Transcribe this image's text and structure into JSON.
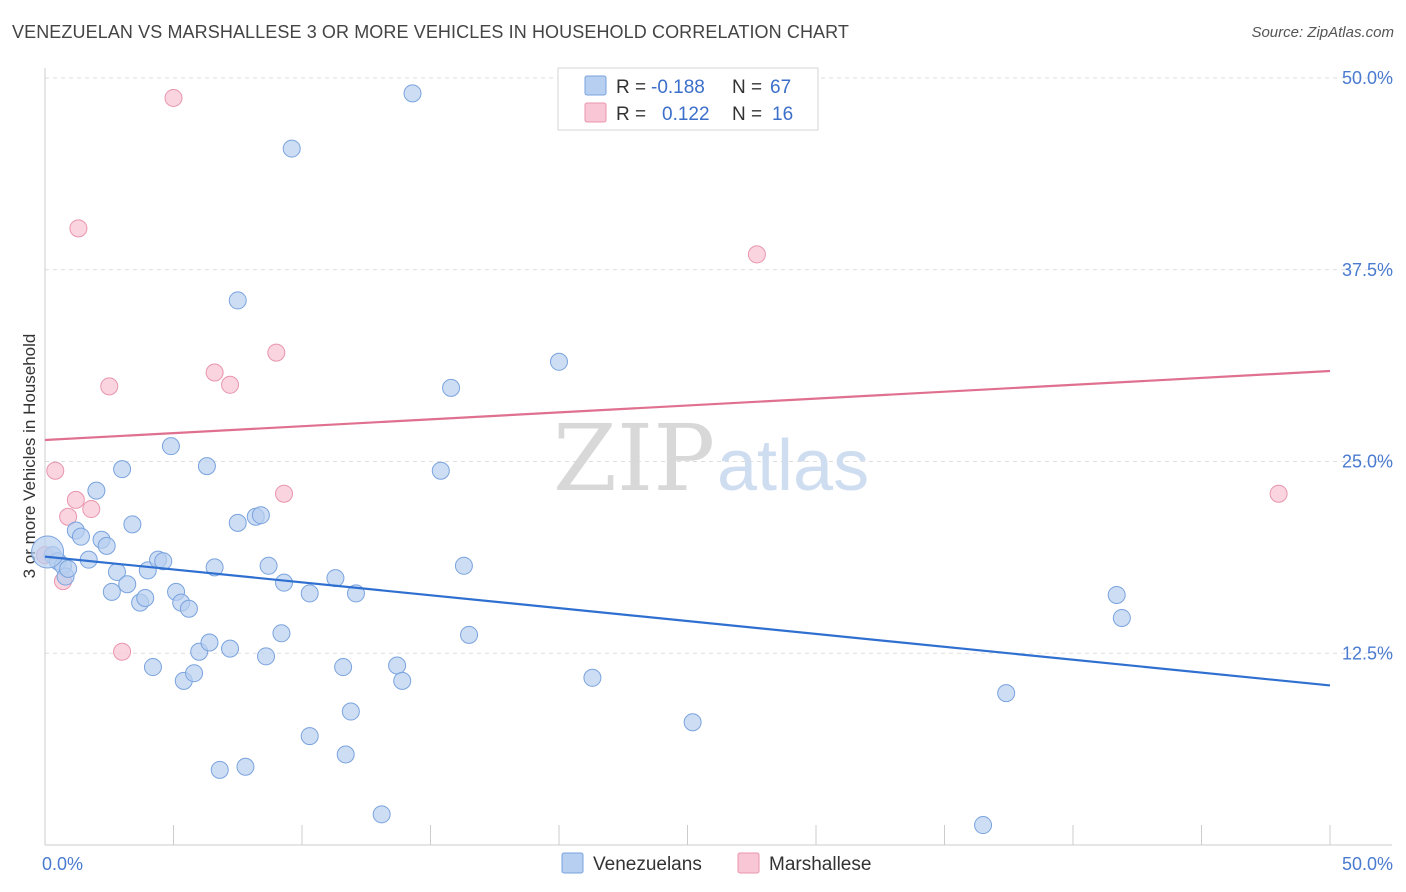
{
  "title": "VENEZUELAN VS MARSHALLESE 3 OR MORE VEHICLES IN HOUSEHOLD CORRELATION CHART",
  "source": "Source: ZipAtlas.com",
  "watermark": {
    "zip": "ZIP",
    "atlas": "atlas"
  },
  "colors": {
    "blue_fill": "#b7cff0",
    "blue_stroke": "#7aa3de",
    "blue_line": "#2f6fd0",
    "pink_fill": "#f8c6d4",
    "pink_stroke": "#e895ad",
    "pink_line": "#e0708f",
    "axis_label": "#4a7bd0",
    "grid": "#dddddd"
  },
  "legend": {
    "rows": [
      {
        "r_label": "R =",
        "r_value": "-0.188",
        "n_label": "N =",
        "n_value": "67"
      },
      {
        "r_label": "R =",
        "r_value": "0.122",
        "n_label": "N =",
        "n_value": "16"
      }
    ]
  },
  "chart_data": {
    "type": "scatter",
    "title": "VENEZUELAN VS MARSHALLESE 3 OR MORE VEHICLES IN HOUSEHOLD CORRELATION CHART",
    "xlabel": "",
    "ylabel": "3 or more Vehicles in Household",
    "xlim": [
      0,
      50
    ],
    "ylim": [
      0,
      50
    ],
    "x_tick_labels": [
      "0.0%",
      "50.0%"
    ],
    "y_ticks": [
      12.5,
      25.0,
      37.5,
      50.0
    ],
    "y_tick_labels": [
      "12.5%",
      "25.0%",
      "37.5%",
      "50.0%"
    ],
    "grid": true,
    "legend_position": "top-center",
    "series": [
      {
        "name": "Venezuelans",
        "r": -0.188,
        "n": 67,
        "trend": {
          "x": [
            0,
            50
          ],
          "y": [
            18.8,
            10.4
          ]
        },
        "points": [
          [
            0.3,
            18.9
          ],
          [
            0.5,
            18.5
          ],
          [
            0.7,
            18.2
          ],
          [
            0.8,
            17.5
          ],
          [
            0.9,
            18.0
          ],
          [
            1.2,
            20.5
          ],
          [
            1.4,
            20.1
          ],
          [
            1.7,
            18.6
          ],
          [
            2.0,
            23.1
          ],
          [
            2.2,
            19.9
          ],
          [
            2.4,
            19.5
          ],
          [
            2.6,
            16.5
          ],
          [
            2.8,
            17.8
          ],
          [
            3.0,
            24.5
          ],
          [
            3.2,
            17.0
          ],
          [
            3.4,
            20.9
          ],
          [
            3.7,
            15.8
          ],
          [
            3.9,
            16.1
          ],
          [
            4.0,
            17.9
          ],
          [
            4.2,
            11.6
          ],
          [
            4.4,
            18.6
          ],
          [
            4.6,
            18.5
          ],
          [
            4.9,
            26.0
          ],
          [
            5.1,
            16.5
          ],
          [
            5.3,
            15.8
          ],
          [
            5.4,
            10.7
          ],
          [
            5.6,
            15.4
          ],
          [
            5.8,
            11.2
          ],
          [
            6.0,
            12.6
          ],
          [
            6.3,
            24.7
          ],
          [
            6.4,
            13.2
          ],
          [
            6.6,
            18.1
          ],
          [
            6.8,
            4.9
          ],
          [
            7.2,
            12.8
          ],
          [
            7.5,
            35.5
          ],
          [
            7.5,
            21.0
          ],
          [
            7.8,
            5.1
          ],
          [
            8.2,
            21.4
          ],
          [
            8.4,
            21.5
          ],
          [
            8.6,
            12.3
          ],
          [
            8.7,
            18.2
          ],
          [
            9.2,
            13.8
          ],
          [
            9.3,
            17.1
          ],
          [
            9.6,
            45.4
          ],
          [
            10.3,
            16.4
          ],
          [
            10.3,
            7.1
          ],
          [
            11.3,
            17.4
          ],
          [
            11.6,
            11.6
          ],
          [
            11.7,
            5.9
          ],
          [
            11.9,
            8.7
          ],
          [
            12.1,
            16.4
          ],
          [
            13.1,
            2.0
          ],
          [
            13.7,
            11.7
          ],
          [
            13.9,
            10.7
          ],
          [
            14.3,
            49.0
          ],
          [
            15.4,
            24.4
          ],
          [
            15.8,
            29.8
          ],
          [
            16.3,
            18.2
          ],
          [
            16.5,
            13.7
          ],
          [
            20.0,
            31.5
          ],
          [
            21.3,
            10.9
          ],
          [
            25.2,
            8.0
          ],
          [
            36.5,
            1.3
          ],
          [
            37.4,
            9.9
          ],
          [
            41.7,
            16.3
          ],
          [
            41.9,
            14.8
          ],
          [
            0.1,
            19.1
          ]
        ]
      },
      {
        "name": "Marshallese",
        "r": 0.122,
        "n": 16,
        "trend": {
          "x": [
            0,
            50
          ],
          "y": [
            26.4,
            30.9
          ]
        },
        "points": [
          [
            0.4,
            24.4
          ],
          [
            0.7,
            17.2
          ],
          [
            0.9,
            21.4
          ],
          [
            1.2,
            22.5
          ],
          [
            1.3,
            40.2
          ],
          [
            1.8,
            21.9
          ],
          [
            2.5,
            29.9
          ],
          [
            3.0,
            12.6
          ],
          [
            5.0,
            48.7
          ],
          [
            6.6,
            30.8
          ],
          [
            7.2,
            30.0
          ],
          [
            9.0,
            32.1
          ],
          [
            9.3,
            22.9
          ],
          [
            27.7,
            38.5
          ],
          [
            48.0,
            22.9
          ],
          [
            0.0,
            18.9
          ]
        ]
      }
    ]
  }
}
